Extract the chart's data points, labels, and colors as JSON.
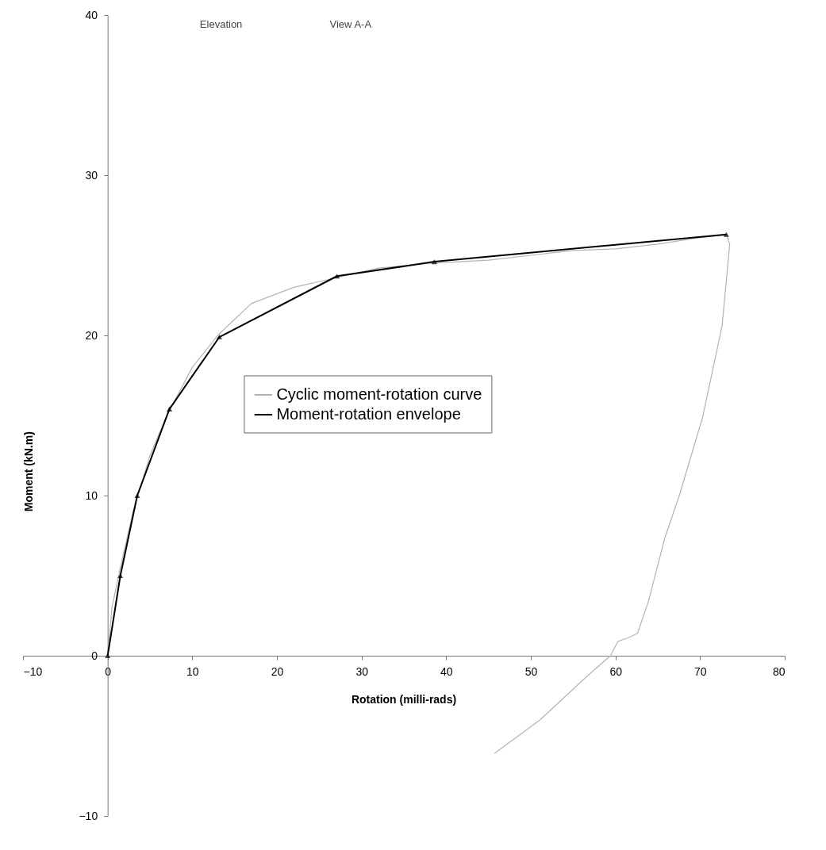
{
  "chart_data": {
    "type": "line",
    "xlabel": "Rotation (milli-rads)",
    "ylabel": "Moment (kN.m)",
    "annotations": [
      "Elevation",
      "View A-A"
    ],
    "xlim": [
      -10,
      80
    ],
    "ylim": [
      -10,
      40
    ],
    "xticks": [
      -10,
      0,
      10,
      20,
      30,
      40,
      50,
      60,
      70,
      80
    ],
    "yticks": [
      -10,
      0,
      10,
      20,
      30,
      40
    ],
    "grid": false,
    "legend": "center",
    "series": [
      {
        "name": "Cyclic moment-rotation curve",
        "color": "#b4b4b4",
        "marker": "none",
        "x": [
          0,
          0.5,
          1.5,
          3,
          5,
          7,
          10,
          13,
          17,
          22,
          27,
          32,
          38,
          45,
          50,
          55,
          60,
          65,
          70,
          73.1,
          73.5,
          72.6,
          70.3,
          67.6,
          65.8,
          63.9,
          62.6,
          61.4,
          60.3,
          59.4,
          56.6,
          51.1,
          45.7
        ],
        "values": [
          0,
          3,
          5.5,
          9,
          12.5,
          15,
          18,
          20,
          22,
          23,
          23.6,
          24.2,
          24.5,
          24.7,
          25,
          25.3,
          25.4,
          25.7,
          26.1,
          26.3,
          25.7,
          20.6,
          14.9,
          10.1,
          7.3,
          3.4,
          1.4,
          1.1,
          0.9,
          0,
          -1.3,
          -4.0,
          -6.1
        ]
      },
      {
        "name": "Moment-rotation envelope",
        "color": "#000000",
        "marker": "triangle",
        "x": [
          0,
          1.5,
          3.5,
          7.3,
          13.2,
          27.1,
          38.6,
          73.1
        ],
        "values": [
          0,
          5,
          10,
          15.4,
          19.9,
          23.7,
          24.6,
          26.3
        ]
      }
    ]
  }
}
